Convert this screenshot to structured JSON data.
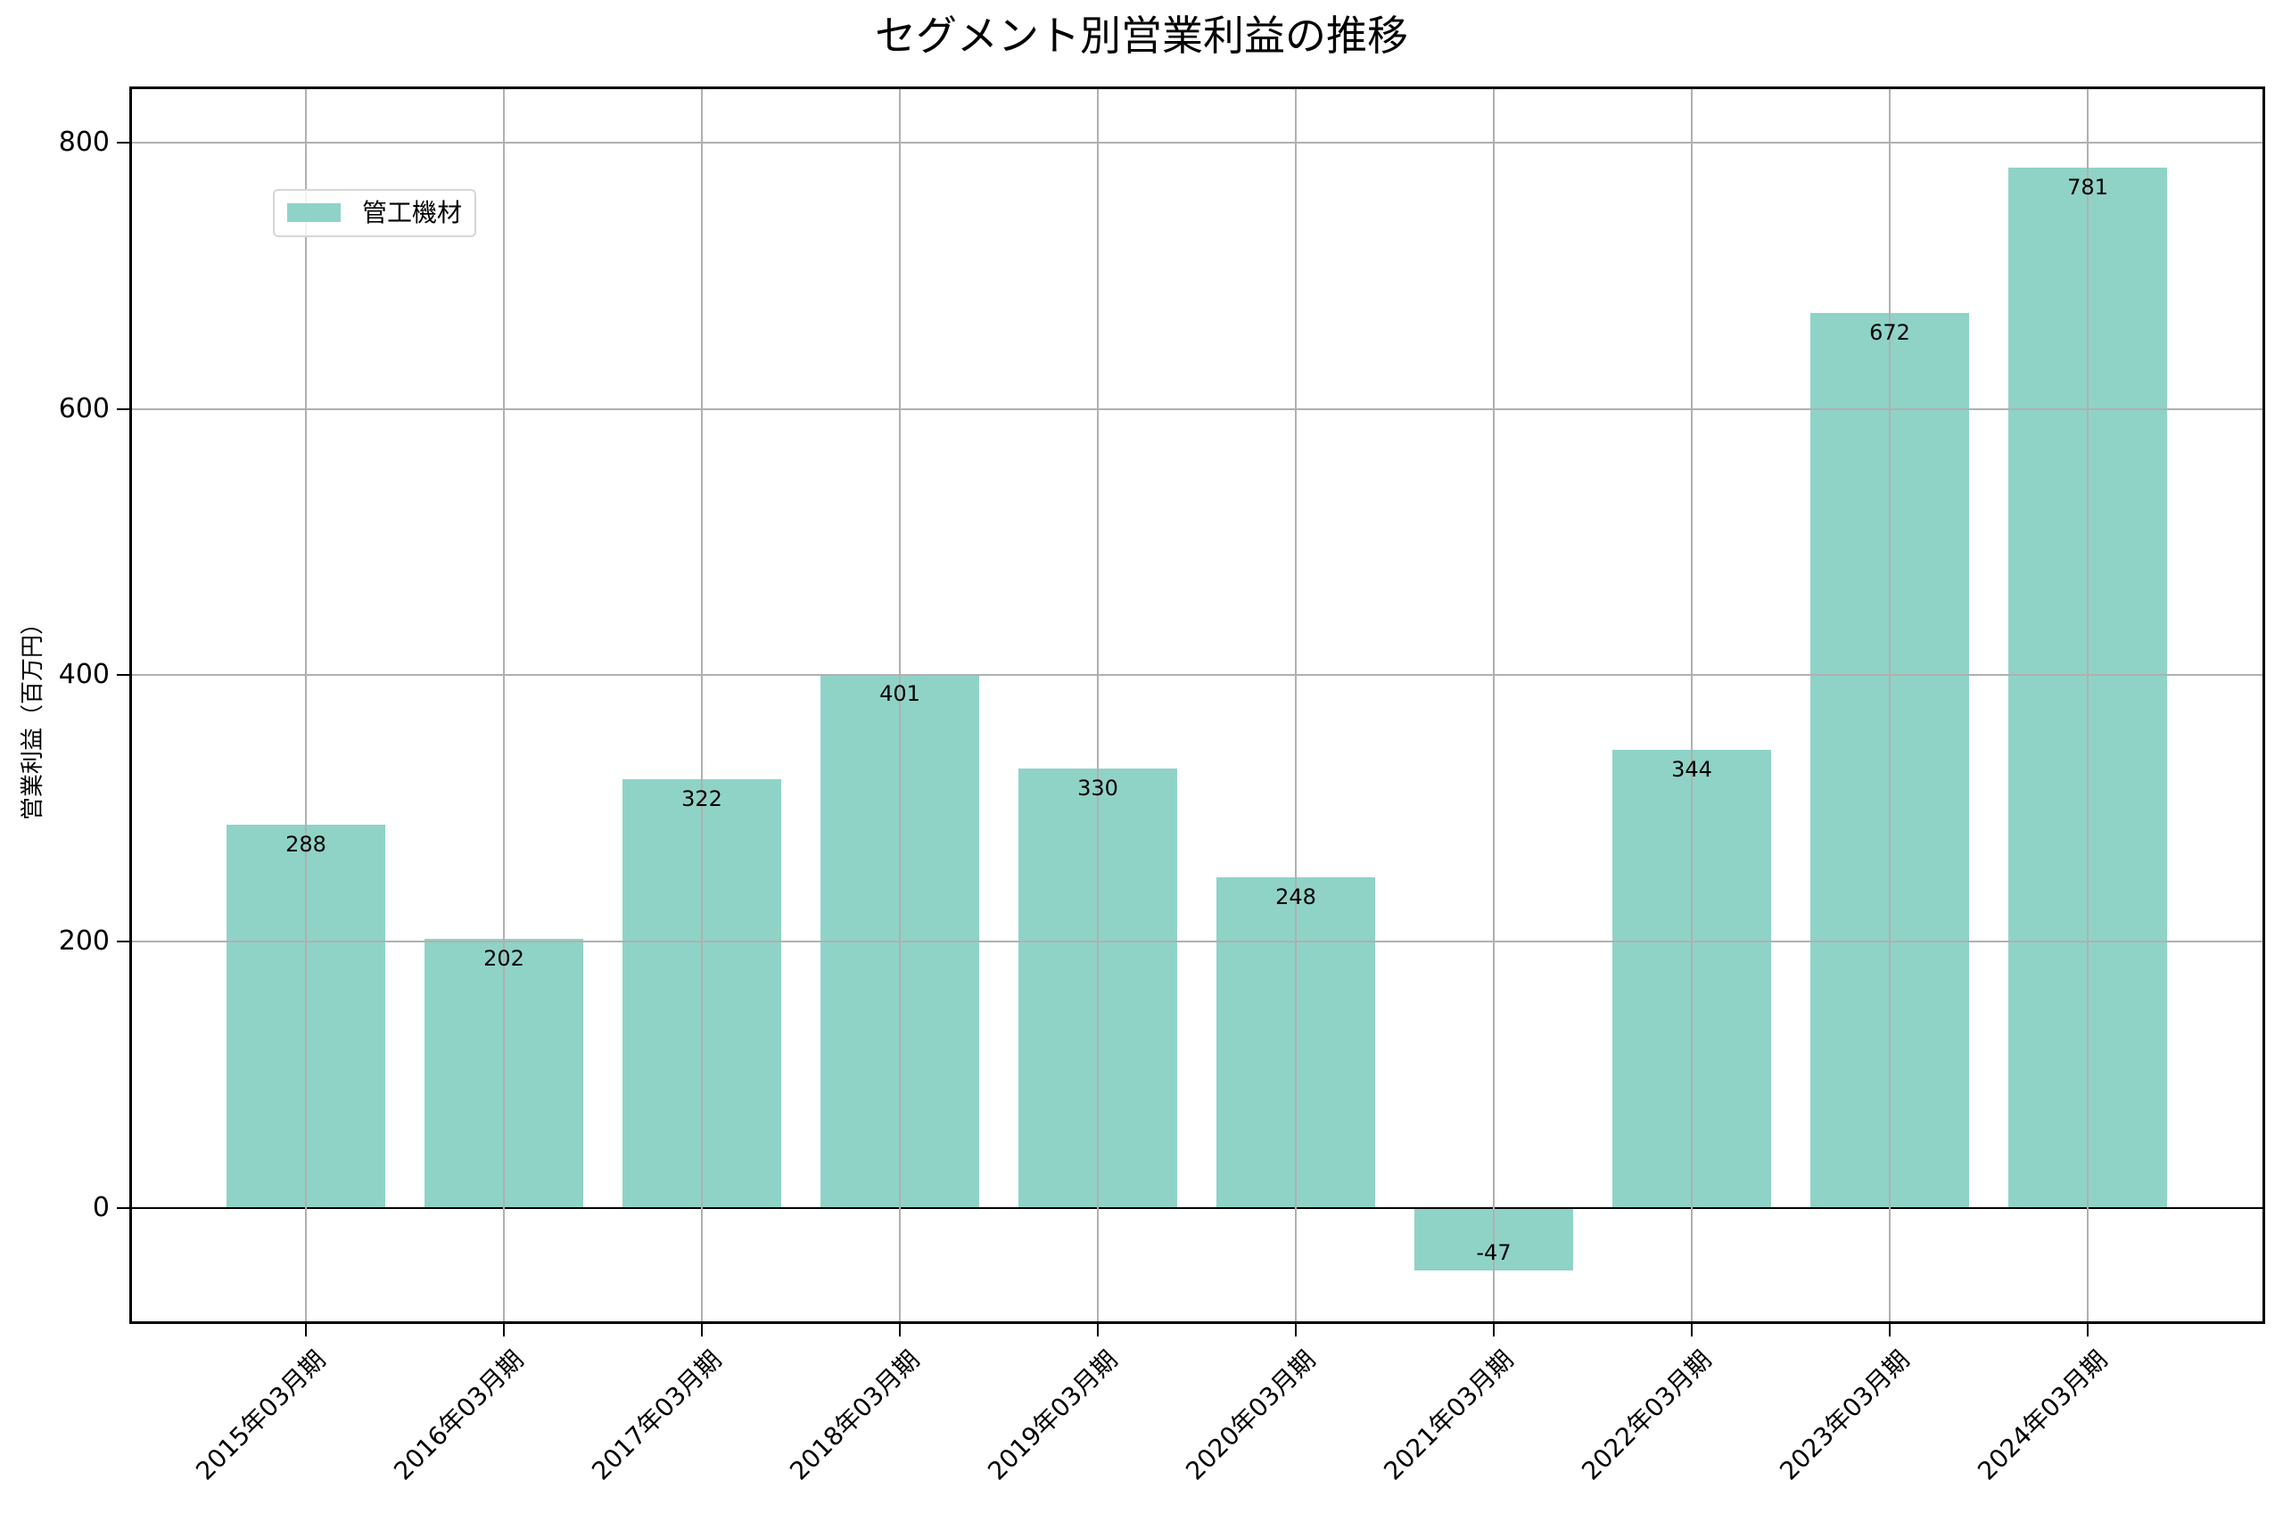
{
  "title": "セグメント別営業利益の推移",
  "legend": {
    "label": "管工機材",
    "color": "#8fd3c7"
  },
  "y_axis": {
    "label": "営業利益（百万円）",
    "ticks": [
      "0",
      "200",
      "400",
      "600",
      "800"
    ]
  },
  "x_axis": {
    "ticks": [
      "2015年03月期",
      "2016年03月期",
      "2017年03月期",
      "2018年03月期",
      "2019年03月期",
      "2020年03月期",
      "2021年03月期",
      "2022年03月期",
      "2023年03月期",
      "2024年03月期"
    ]
  },
  "bar_labels": [
    "288",
    "202",
    "322",
    "401",
    "330",
    "248",
    "-47",
    "344",
    "672",
    "781"
  ],
  "chart_data": {
    "type": "bar",
    "title": "セグメント別営業利益の推移",
    "xlabel": "",
    "ylabel": "営業利益（百万円）",
    "categories": [
      "2015年03月期",
      "2016年03月期",
      "2017年03月期",
      "2018年03月期",
      "2019年03月期",
      "2020年03月期",
      "2021年03月期",
      "2022年03月期",
      "2023年03月期",
      "2024年03月期"
    ],
    "series": [
      {
        "name": "管工機材",
        "color": "#8fd3c7",
        "values": [
          288,
          202,
          322,
          401,
          330,
          248,
          -47,
          344,
          672,
          781
        ]
      }
    ],
    "ylim": [
      -87,
      842
    ],
    "yticks": [
      0,
      200,
      400,
      600,
      800
    ],
    "grid": true,
    "legend_position": "upper left",
    "data_labels": true,
    "x_tick_rotation": 45
  }
}
